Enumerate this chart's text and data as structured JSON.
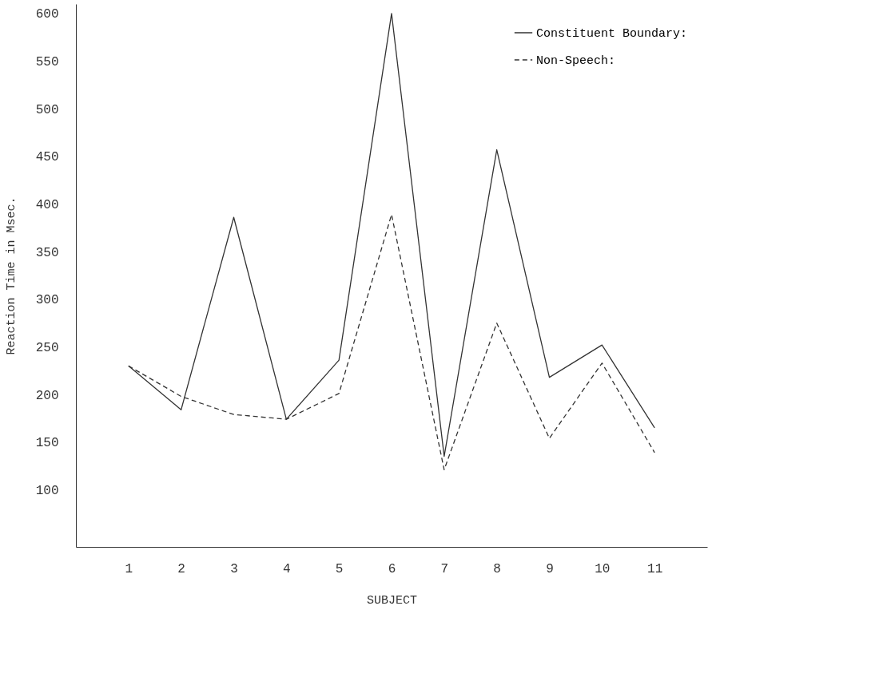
{
  "chart_data": {
    "type": "line",
    "xlabel": "SUBJECT",
    "ylabel": "Reaction Time in Msec.",
    "categories": [
      "1",
      "2",
      "3",
      "4",
      "5",
      "6",
      "7",
      "8",
      "9",
      "10",
      "11"
    ],
    "series": [
      {
        "name": "Constituent Boundary:",
        "color": "#333333",
        "line_style": "solid",
        "values": [
          230,
          184,
          386,
          174,
          236,
          600,
          135,
          457,
          218,
          252,
          165
        ]
      },
      {
        "name": "Non-Speech:",
        "color": "#333333",
        "line_style": "dashed",
        "values": [
          230,
          198,
          179,
          174,
          201,
          389,
          121,
          275,
          154,
          233,
          139
        ]
      }
    ],
    "ylim": [
      40,
      610
    ],
    "yticks": [
      100,
      150,
      200,
      250,
      300,
      350,
      400,
      450,
      500,
      550,
      600
    ],
    "grid": false,
    "legend": "top right",
    "marker": "none"
  }
}
